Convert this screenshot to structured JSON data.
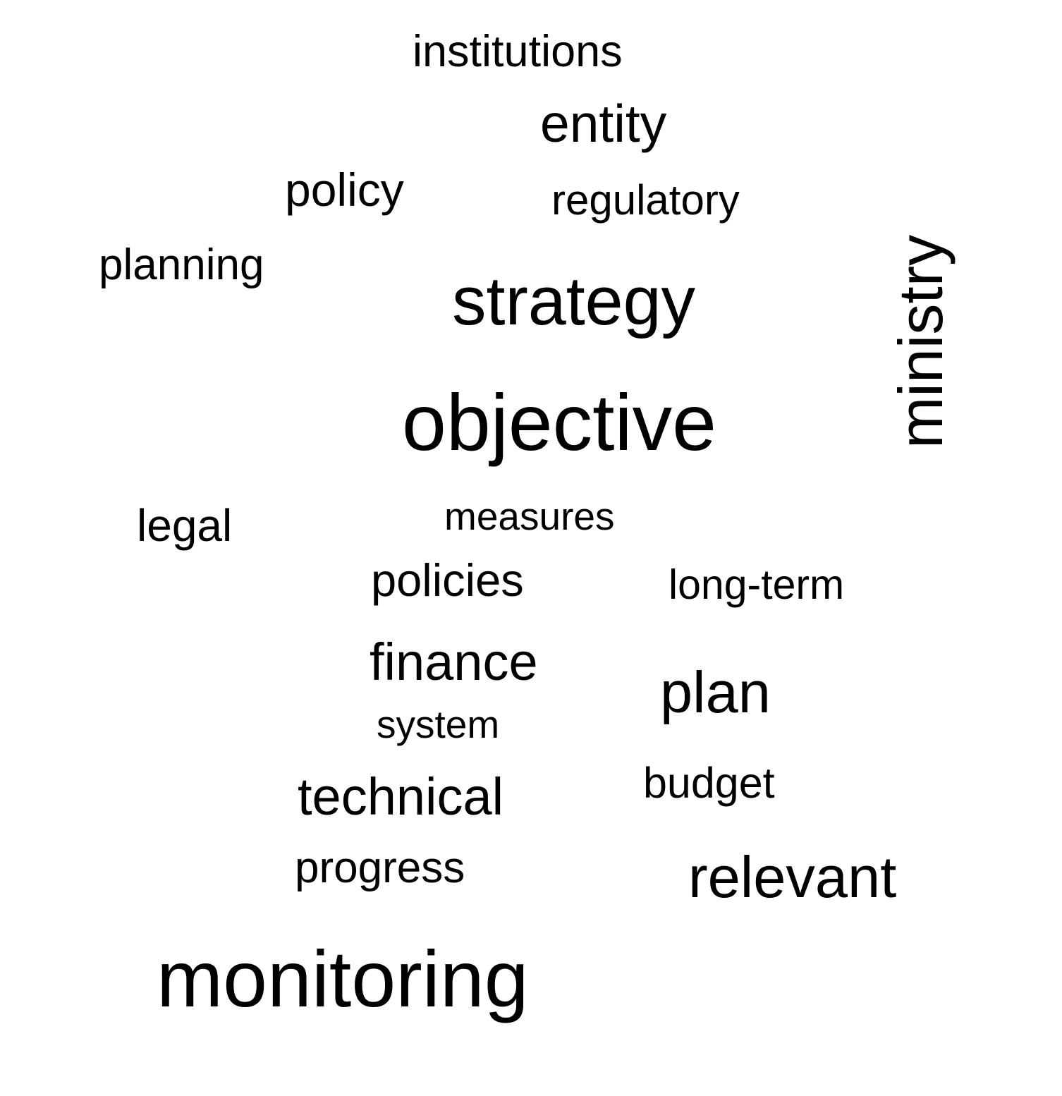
{
  "words": {
    "institutions": "institutions",
    "entity": "entity",
    "policy": "policy",
    "regulatory": "regulatory",
    "planning": "planning",
    "strategy": "strategy",
    "objective": "objective",
    "ministry": "ministry",
    "legal": "legal",
    "measures": "measures",
    "policies": "policies",
    "long_term": "long-term",
    "finance": "finance",
    "plan": "plan",
    "system": "system",
    "budget": "budget",
    "technical": "technical",
    "progress": "progress",
    "relevant": "relevant",
    "monitoring": "monitoring"
  },
  "colors": {
    "text": "#000000",
    "background": "#ffffff"
  }
}
